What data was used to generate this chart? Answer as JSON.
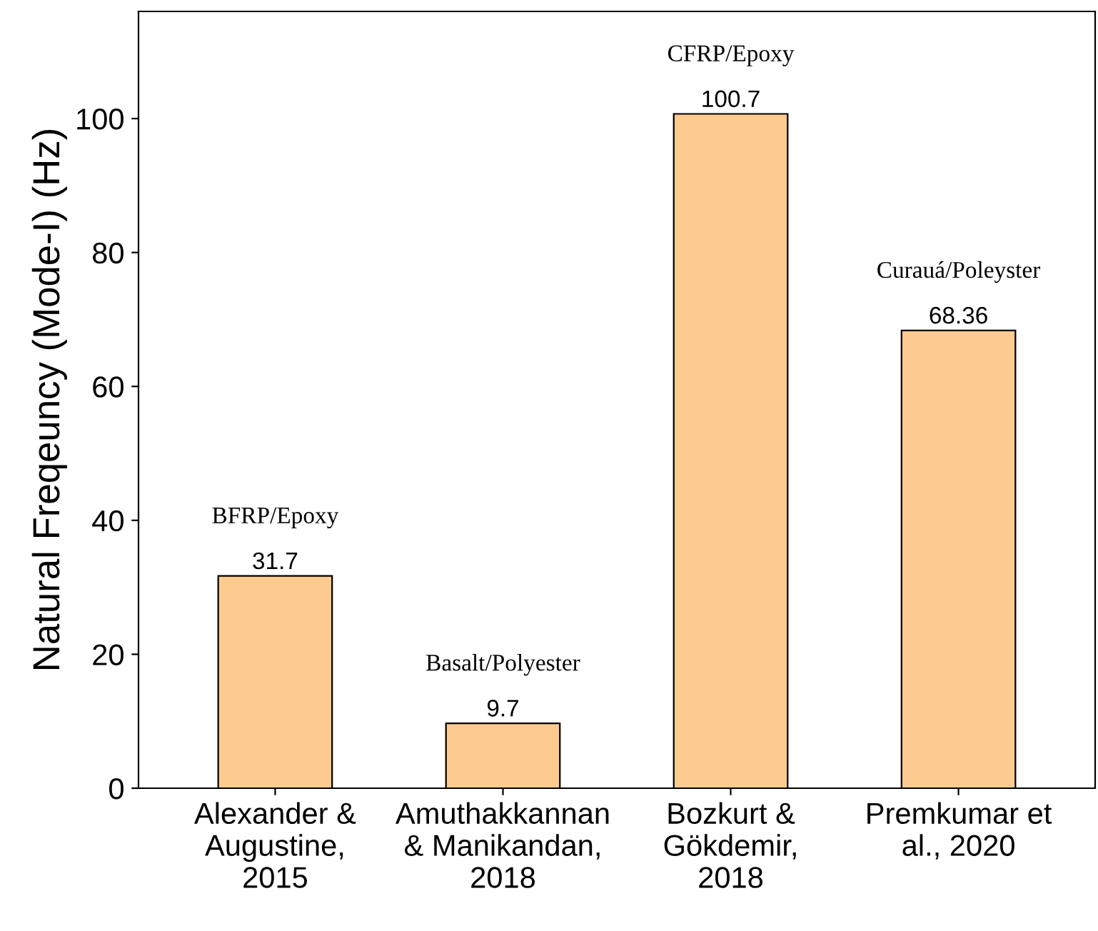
{
  "chart_data": {
    "type": "bar",
    "ylabel": "Natural Freqeuncy (Mode-I) (Hz)",
    "categories": [
      "Alexander &\nAugustine,\n2015",
      "Amuthakkannan\n& Manikandan,\n2018",
      "Bozkurt &\nGökdemir,\n2018",
      "Premkumar et\nal., 2020"
    ],
    "values": [
      31.7,
      9.7,
      100.7,
      68.36
    ],
    "color": "#fdcb8f",
    "value_labels": [
      "31.7",
      "9.7",
      "100.7",
      "68.36"
    ],
    "annotations": [
      "BFRP/Epoxy",
      "Basalt/Polyester",
      "CFRP/Epoxy",
      "Curauá/Poleyster"
    ],
    "ylim": [
      0,
      116
    ],
    "yticks": [
      0,
      20,
      40,
      60,
      80,
      100
    ],
    "grid": false,
    "legend": false
  }
}
